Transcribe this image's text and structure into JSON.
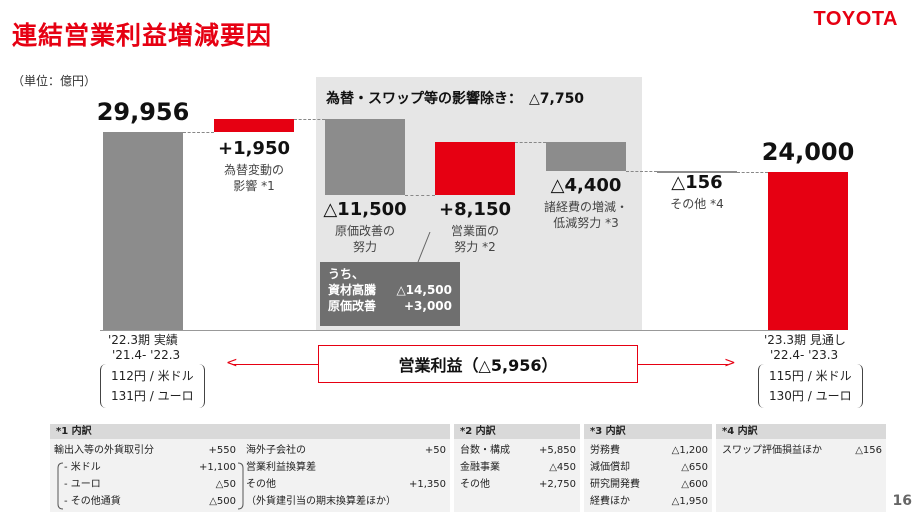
{
  "header": {
    "title": "連結営業利益増減要因",
    "logo": "TOYOTA",
    "page_number": "16"
  },
  "unit_label": "（単位：億円）",
  "fx_shade_label": "為替・スワップ等の影響除き：　△7,750",
  "chart_data": {
    "type": "bar",
    "subtype": "waterfall",
    "ylim": [
      0,
      32000
    ],
    "categories": [
      "'22.3期 実績",
      "為替変動の影響",
      "原価改善の努力",
      "営業面の努力",
      "諸経費の増減・低減努力",
      "その他",
      "'23.3期 見通し"
    ],
    "steps": [
      {
        "kind": "total",
        "value": 29956,
        "label": "29,956",
        "color": "#8c8c8c"
      },
      {
        "kind": "delta",
        "value": 1950,
        "label": "+1,950",
        "desc": "為替変動の\n影響 *1",
        "color": "#e60012"
      },
      {
        "kind": "delta",
        "value": -11500,
        "label": "△11,500",
        "desc": "原価改善の\n努力",
        "color": "#8c8c8c"
      },
      {
        "kind": "delta",
        "value": 8150,
        "label": "+8,150",
        "desc": "営業面の\n努力 *2",
        "color": "#e60012"
      },
      {
        "kind": "delta",
        "value": -4400,
        "label": "△4,400",
        "desc": "諸経費の増減・\n低減努力 *3",
        "color": "#8c8c8c"
      },
      {
        "kind": "delta",
        "value": -156,
        "label": "△156",
        "desc": "その他 *4",
        "color": "#8c8c8c"
      },
      {
        "kind": "total",
        "value": 24000,
        "label": "24,000",
        "color": "#e60012"
      }
    ]
  },
  "breakdown_box": {
    "title": "うち、",
    "rows": [
      {
        "label": "資材高騰",
        "value": "△14,500"
      },
      {
        "label": "原価改善",
        "value": "+3,000"
      }
    ]
  },
  "operating_profit": {
    "label": "営業利益",
    "value": "（△5,956）"
  },
  "left_period": {
    "line1": "'22.3期 実績",
    "line2": "'21.4- '22.3",
    "fx1": "112円 / 米ドル",
    "fx2": "131円 / ユーロ"
  },
  "right_period": {
    "line1": "'23.3期 見通し",
    "line2": "'22.4- '23.3",
    "fx1": "115円 / 米ドル",
    "fx2": "130円 / ユーロ"
  },
  "notes": {
    "n1": {
      "title": "*1 内訳",
      "left": [
        {
          "label": "輸出入等の外貨取引分",
          "value": "+550"
        },
        {
          "label": "- 米ドル",
          "value": "+1,100"
        },
        {
          "label": "- ユーロ",
          "value": "△50"
        },
        {
          "label": "- その他通貨",
          "value": "△500"
        }
      ],
      "right": [
        {
          "label": "海外子会社の",
          "value": "+50"
        },
        {
          "label": "営業利益換算差",
          "value": ""
        },
        {
          "label": "その他",
          "value": "+1,350"
        },
        {
          "label": "（外貨建引当の期末換算差ほか）",
          "value": ""
        }
      ]
    },
    "n2": {
      "title": "*2 内訳",
      "rows": [
        {
          "label": "台数・構成",
          "value": "+5,850"
        },
        {
          "label": "金融事業",
          "value": "△450"
        },
        {
          "label": "その他",
          "value": "+2,750"
        }
      ]
    },
    "n3": {
      "title": "*3 内訳",
      "rows": [
        {
          "label": "労務費",
          "value": "△1,200"
        },
        {
          "label": "減価償却",
          "value": "△650"
        },
        {
          "label": "研究開発費",
          "value": "△600"
        },
        {
          "label": "経費ほか",
          "value": "△1,950"
        }
      ]
    },
    "n4": {
      "title": "*4 内訳",
      "rows": [
        {
          "label": "スワップ評価損益ほか",
          "value": "△156"
        }
      ]
    }
  }
}
